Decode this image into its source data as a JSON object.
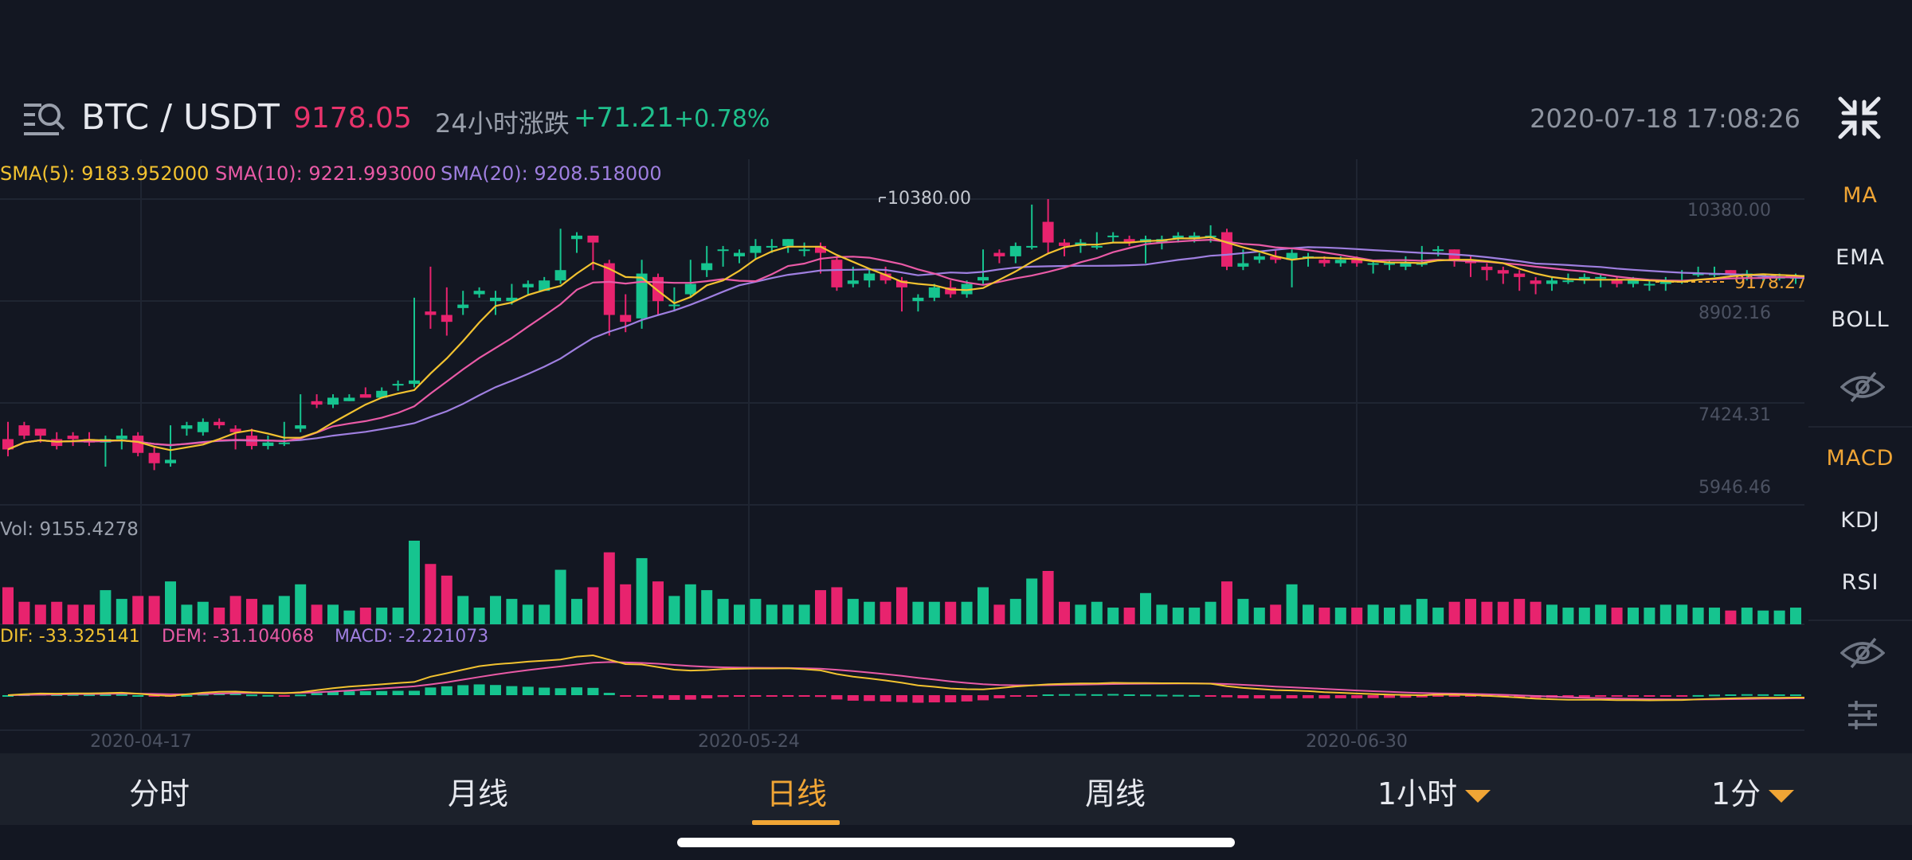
{
  "header": {
    "pair": "BTC / USDT",
    "price": "9178.05",
    "change_label": "24小时涨跌",
    "change_abs": "+71.21",
    "change_pct": "+0.78%",
    "clock": "2020-07-18 17:08:26"
  },
  "indicators": {
    "sma5": "SMA(5): 9183.952000",
    "sma10": "SMA(10): 9221.993000",
    "sma20": "SMA(20): 9208.518000",
    "vol": "Vol: 9155.4278",
    "dif": "DIF: -33.325141",
    "dem": "DEM: -31.104068",
    "macd": "MACD: -2.221073"
  },
  "axis": {
    "price_ticks": [
      "10380.00",
      "8902.16",
      "7424.31",
      "5946.46"
    ],
    "high_marker": "10380.00",
    "last_price_label": "9178.27",
    "date_ticks": [
      "2020-04-17",
      "2020-05-24",
      "2020-06-30"
    ]
  },
  "side_menu": {
    "ma": "MA",
    "ema": "EMA",
    "boll": "BOLL",
    "macd": "MACD",
    "kdj": "KDJ",
    "rsi": "RSI"
  },
  "tabs": {
    "fenshi": "分时",
    "yue": "月线",
    "ri": "日线",
    "zhou": "周线",
    "hour": "1小时",
    "minute": "1分"
  },
  "colors": {
    "up": "#16c48f",
    "down": "#e8236e",
    "sma5": "#f2c230",
    "sma10": "#e95aa6",
    "sma20": "#9f7fe0",
    "accent": "#f0a535"
  },
  "chart_data": {
    "type": "candlestick",
    "ylim": [
      5946.46,
      10380.0
    ],
    "series": [
      {
        "name": "SMA(5)"
      },
      {
        "name": "SMA(10)"
      },
      {
        "name": "SMA(20)"
      }
    ],
    "candles": [
      [
        6900,
        7100,
        6750,
        6650,
        7150
      ],
      [
        7100,
        7050,
        6950,
        6900,
        7150
      ],
      [
        7050,
        6900,
        6950,
        6850,
        7050
      ],
      [
        6900,
        6950,
        6800,
        6750,
        7000
      ],
      [
        6950,
        6850,
        6900,
        6800,
        7000
      ],
      [
        6900,
        6950,
        6850,
        6800,
        7000
      ],
      [
        6850,
        6600,
        6900,
        6500,
        6950
      ],
      [
        6900,
        6800,
        6950,
        6750,
        7050
      ],
      [
        6950,
        6800,
        6700,
        6650,
        7000
      ],
      [
        6700,
        6750,
        6550,
        6450,
        6800
      ],
      [
        6550,
        7000,
        6600,
        6500,
        7100
      ],
      [
        7050,
        7000,
        7100,
        6950,
        7150
      ],
      [
        7000,
        7000,
        7150,
        6950,
        7200
      ],
      [
        7150,
        7100,
        7100,
        7050,
        7200
      ],
      [
        7050,
        6800,
        7000,
        6750,
        7100
      ],
      [
        6950,
        6950,
        6800,
        6750,
        7050
      ],
      [
        6800,
        6900,
        6850,
        6750,
        6950
      ],
      [
        6850,
        7100,
        6850,
        6800,
        7150
      ],
      [
        7050,
        7500,
        7100,
        7000,
        7550
      ],
      [
        7450,
        7450,
        7400,
        7350,
        7550
      ],
      [
        7400,
        7500,
        7500,
        7350,
        7550
      ],
      [
        7450,
        7500,
        7500,
        7450,
        7550
      ],
      [
        7550,
        7600,
        7500,
        7500,
        7650
      ],
      [
        7500,
        7600,
        7600,
        7500,
        7650
      ],
      [
        7700,
        7650,
        7700,
        7600,
        7750
      ],
      [
        7700,
        8750,
        7750,
        7650,
        8950
      ],
      [
        8750,
        8600,
        8700,
        8500,
        9400
      ],
      [
        8700,
        8900,
        8600,
        8400,
        9100
      ],
      [
        8800,
        9000,
        8850,
        8700,
        9050
      ],
      [
        9000,
        9000,
        9050,
        8950,
        9100
      ],
      [
        8900,
        8800,
        8950,
        8700,
        9050
      ],
      [
        8900,
        9100,
        8950,
        8850,
        9150
      ],
      [
        9100,
        9150,
        9150,
        9000,
        9200
      ],
      [
        9050,
        9100,
        9200,
        9050,
        9250
      ],
      [
        9200,
        9850,
        9350,
        9150,
        9950
      ],
      [
        9800,
        9700,
        9850,
        9600,
        9900
      ],
      [
        9850,
        9450,
        9750,
        9350,
        9850
      ],
      [
        9450,
        9450,
        8700,
        8400,
        9500
      ],
      [
        8700,
        8750,
        8600,
        8450,
        9000
      ],
      [
        8650,
        8650,
        9300,
        8500,
        9500
      ],
      [
        9250,
        8800,
        8900,
        8700,
        9300
      ],
      [
        8850,
        9050,
        8850,
        8750,
        9100
      ],
      [
        9000,
        9450,
        9150,
        8950,
        9500
      ],
      [
        9350,
        9650,
        9450,
        9250,
        9700
      ],
      [
        9650,
        9550,
        9650,
        9400,
        9700
      ],
      [
        9550,
        9550,
        9600,
        9450,
        9650
      ],
      [
        9600,
        9750,
        9700,
        9500,
        9800
      ],
      [
        9700,
        9650,
        9700,
        9600,
        9800
      ],
      [
        9700,
        9650,
        9800,
        9600,
        9800
      ],
      [
        9650,
        9700,
        9650,
        9550,
        9750
      ],
      [
        9700,
        9450,
        9600,
        9300,
        9750
      ],
      [
        9500,
        9350,
        9100,
        9050,
        9550
      ],
      [
        9150,
        9300,
        9200,
        9100,
        9400
      ],
      [
        9200,
        9200,
        9300,
        9100,
        9350
      ],
      [
        9300,
        9300,
        9200,
        9150,
        9400
      ],
      [
        9200,
        8800,
        9100,
        8750,
        9250
      ],
      [
        8900,
        8850,
        8950,
        8750,
        9000
      ],
      [
        8950,
        8950,
        9100,
        8900,
        9150
      ],
      [
        9100,
        9100,
        9000,
        8950,
        9200
      ],
      [
        9000,
        9050,
        9150,
        8950,
        9200
      ],
      [
        9200,
        9600,
        9250,
        9150,
        9650
      ],
      [
        9600,
        9500,
        9550,
        9450,
        9650
      ],
      [
        9550,
        9500,
        9700,
        9450,
        9750
      ],
      [
        9700,
        10050,
        9700,
        9650,
        10300
      ],
      [
        10050,
        10250,
        9750,
        9600,
        10380
      ],
      [
        9750,
        9600,
        9700,
        9550,
        9800
      ],
      [
        9700,
        9650,
        9750,
        9600,
        9800
      ],
      [
        9700,
        9850,
        9700,
        9650,
        9900
      ],
      [
        9850,
        9800,
        9850,
        9750,
        9900
      ],
      [
        9800,
        9800,
        9750,
        9700,
        9850
      ],
      [
        9750,
        9550,
        9800,
        9450,
        9850
      ],
      [
        9750,
        9750,
        9800,
        9650,
        9850
      ],
      [
        9800,
        9800,
        9850,
        9750,
        9900
      ],
      [
        9800,
        9850,
        9850,
        9750,
        9900
      ],
      [
        9850,
        9950,
        9850,
        9750,
        10000
      ],
      [
        9900,
        9900,
        9400,
        9350,
        9950
      ],
      [
        9400,
        9550,
        9450,
        9350,
        9650
      ],
      [
        9500,
        9550,
        9550,
        9450,
        9600
      ],
      [
        9550,
        9600,
        9500,
        9450,
        9650
      ],
      [
        9500,
        9400,
        9600,
        9100,
        9650
      ],
      [
        9550,
        9450,
        9550,
        9400,
        9600
      ],
      [
        9500,
        9500,
        9450,
        9400,
        9550
      ],
      [
        9450,
        9500,
        9500,
        9400,
        9550
      ],
      [
        9500,
        9500,
        9450,
        9400,
        9550
      ],
      [
        9450,
        9350,
        9450,
        9300,
        9500
      ],
      [
        9450,
        9400,
        9450,
        9350,
        9500
      ],
      [
        9400,
        9500,
        9450,
        9350,
        9550
      ],
      [
        9450,
        9650,
        9450,
        9400,
        9700
      ],
      [
        9650,
        9600,
        9650,
        9550,
        9700
      ],
      [
        9650,
        9600,
        9500,
        9400,
        9650
      ],
      [
        9500,
        9300,
        9450,
        9250,
        9550
      ],
      [
        9400,
        9250,
        9350,
        9200,
        9450
      ],
      [
        9350,
        9250,
        9300,
        9150,
        9400
      ],
      [
        9300,
        9100,
        9250,
        9050,
        9350
      ],
      [
        9200,
        9100,
        9150,
        9000,
        9250
      ],
      [
        9150,
        9150,
        9200,
        9050,
        9250
      ],
      [
        9200,
        9250,
        9200,
        9150,
        9300
      ],
      [
        9200,
        9200,
        9250,
        9150,
        9300
      ],
      [
        9250,
        9150,
        9250,
        9100,
        9300
      ],
      [
        9200,
        9200,
        9150,
        9100,
        9250
      ],
      [
        9150,
        9150,
        9200,
        9100,
        9250
      ],
      [
        9150,
        9100,
        9150,
        9050,
        9200
      ],
      [
        9150,
        9200,
        9200,
        9050,
        9250
      ],
      [
        9200,
        9300,
        9200,
        9150,
        9350
      ],
      [
        9300,
        9350,
        9300,
        9250,
        9400
      ],
      [
        9300,
        9350,
        9300,
        9250,
        9400
      ],
      [
        9350,
        9300,
        9300,
        9250,
        9350
      ],
      [
        9300,
        9250,
        9300,
        9200,
        9350
      ],
      [
        9250,
        9250,
        9250,
        9200,
        9300
      ],
      [
        9250,
        9250,
        9250,
        9200,
        9300
      ],
      [
        9250,
        9200,
        9250,
        9150,
        9300
      ],
      [
        9200,
        9200,
        9200,
        9150,
        9250
      ],
      [
        9200,
        9180,
        9200,
        9150,
        9250
      ],
      [
        9200,
        9178,
        9180,
        9160,
        9210
      ]
    ]
  }
}
